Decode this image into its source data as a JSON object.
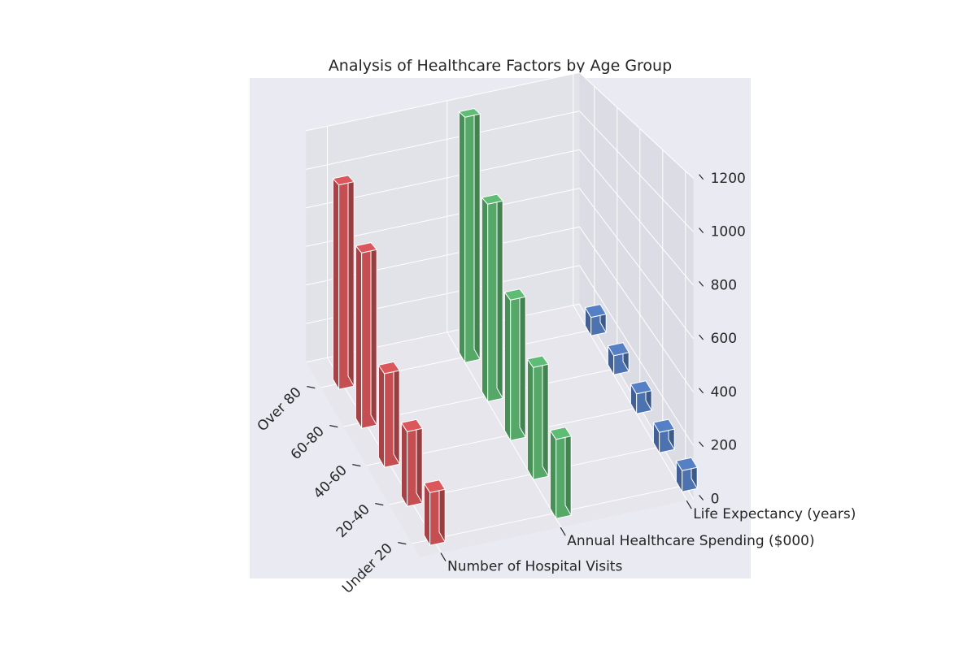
{
  "chart_data": {
    "type": "bar3d",
    "title": "Analysis of Healthcare Factors by Age Group",
    "categories": [
      "Under 20",
      "20-40",
      "40-60",
      "60-80",
      "Over 80"
    ],
    "series": [
      {
        "name": "Number of Hospital Visits",
        "values": [
          200,
          300,
          400,
          800,
          1000
        ],
        "color": "#c44e52"
      },
      {
        "name": "Annual Healthcare Spending ($000)",
        "values": [
          300,
          450,
          600,
          900,
          1200
        ],
        "color": "#55a868"
      },
      {
        "name": "Life Expectancy (years)",
        "values": [
          80,
          82,
          85,
          87,
          90
        ],
        "color": "#4c72b0"
      }
    ],
    "zlim": [
      0,
      1200
    ],
    "zticks": [
      0,
      200,
      400,
      600,
      800,
      1000,
      1200
    ],
    "grid": true
  }
}
